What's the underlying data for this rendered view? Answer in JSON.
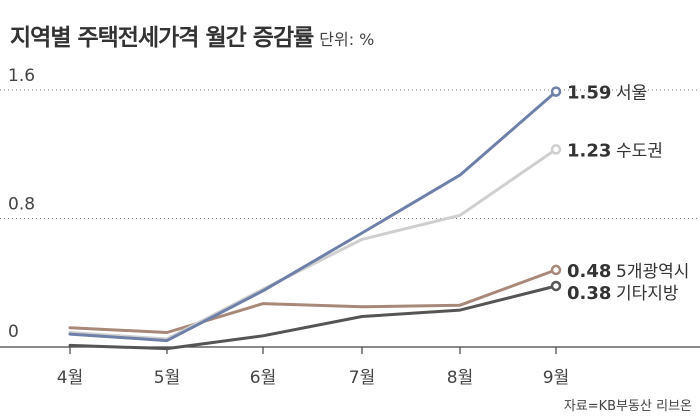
{
  "header": {
    "title": "지역별 주택전세가격 월간 증감률",
    "unit": "단위: %"
  },
  "source": "자료=KB부동산 리브온",
  "chart_data": {
    "type": "line",
    "title": "지역별 주택전세가격 월간 증감률",
    "unit": "%",
    "x": [
      "4월",
      "5월",
      "6월",
      "7월",
      "8월",
      "9월"
    ],
    "ylim": [
      0,
      1.6
    ],
    "yticks": [
      "0",
      "0.8",
      "1.6"
    ],
    "grid": "dotted at 0.8 and 1.6",
    "series": [
      {
        "name": "서울",
        "color": "#6e80a8",
        "values": [
          0.08,
          0.04,
          0.35,
          0.71,
          1.07,
          1.59
        ],
        "end_label": "1.59"
      },
      {
        "name": "수도권",
        "color": "#cfcfcf",
        "values": [
          0.09,
          0.05,
          0.36,
          0.67,
          0.82,
          1.23
        ],
        "end_label": "1.23"
      },
      {
        "name": "5개광역시",
        "color": "#a88878",
        "values": [
          0.12,
          0.09,
          0.27,
          0.25,
          0.26,
          0.48
        ],
        "end_label": "0.48"
      },
      {
        "name": "기타지방",
        "color": "#555555",
        "values": [
          0.01,
          -0.01,
          0.07,
          0.19,
          0.23,
          0.38
        ],
        "end_label": "0.38"
      }
    ]
  }
}
